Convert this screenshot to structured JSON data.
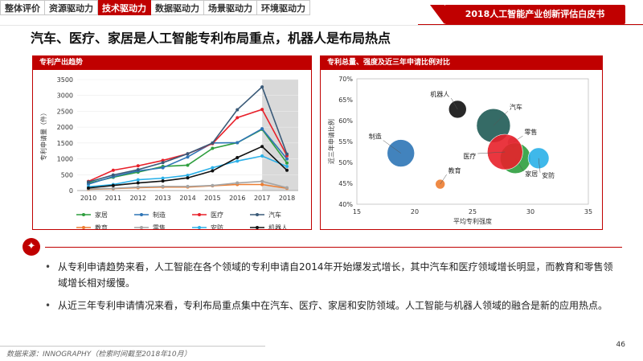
{
  "nav": {
    "tabs": [
      {
        "label": "整体评价",
        "active": false
      },
      {
        "label": "资源驱动力",
        "active": false
      },
      {
        "label": "技术驱动力",
        "active": true
      },
      {
        "label": "数据驱动力",
        "active": false
      },
      {
        "label": "场景驱动力",
        "active": false
      },
      {
        "label": "环境驱动力",
        "active": false
      }
    ]
  },
  "report_badge": "2018人工智能产业创新评估白皮书",
  "page_title": "汽车、医疗、家居是人工智能专利布局重点，机器人是布局热点",
  "left_panel": {
    "title": "专利产出趋势"
  },
  "right_panel": {
    "title": "专利总量、强度及近三年申请比例对比"
  },
  "chart_data": [
    {
      "type": "line",
      "title": "专利产出趋势",
      "xlabel": "",
      "ylabel": "专利申请量（件）",
      "x": [
        "2010",
        "2011",
        "2012",
        "2013",
        "2014",
        "2015",
        "2016",
        "2017",
        "2018"
      ],
      "ylim": [
        0,
        3500
      ],
      "yticks": [
        0,
        500,
        1000,
        1500,
        2000,
        2500,
        3000,
        3500
      ],
      "shaded_region": [
        "2017",
        "2018"
      ],
      "legend_position": "bottom",
      "series": [
        {
          "name": "家居",
          "color": "#2e9e3e",
          "values": [
            230,
            420,
            580,
            760,
            800,
            1330,
            1510,
            1930,
            870
          ]
        },
        {
          "name": "制造",
          "color": "#2e75b6",
          "values": [
            200,
            440,
            620,
            720,
            1060,
            1500,
            1510,
            1950,
            1000
          ]
        },
        {
          "name": "医疗",
          "color": "#e8202a",
          "values": [
            290,
            640,
            780,
            950,
            1160,
            1480,
            2300,
            2560,
            1100
          ]
        },
        {
          "name": "汽车",
          "color": "#3a5a78",
          "values": [
            270,
            490,
            660,
            880,
            1160,
            1500,
            2550,
            3270,
            1150
          ]
        },
        {
          "name": "教育",
          "color": "#ed7d31",
          "values": [
            40,
            60,
            90,
            110,
            110,
            150,
            190,
            190,
            70
          ]
        },
        {
          "name": "零售",
          "color": "#a5a5a5",
          "values": [
            50,
            70,
            110,
            130,
            130,
            160,
            240,
            290,
            90
          ]
        },
        {
          "name": "安防",
          "color": "#2ab0e8",
          "values": [
            120,
            190,
            340,
            390,
            480,
            720,
            930,
            1090,
            760
          ]
        },
        {
          "name": "机器人",
          "color": "#111111",
          "values": [
            80,
            160,
            240,
            300,
            400,
            620,
            1040,
            1390,
            640
          ]
        }
      ]
    },
    {
      "type": "scatter",
      "title": "专利总量、强度及近三年申请比例对比",
      "xlabel": "平均专利强度",
      "ylabel": "近三年申请比例",
      "xlim": [
        15,
        35
      ],
      "ylim": [
        40,
        70
      ],
      "xticks": [
        15,
        20,
        25,
        30,
        35
      ],
      "yticks": [
        "40%",
        "45%",
        "50%",
        "55%",
        "60%",
        "65%",
        "70%"
      ],
      "points": [
        {
          "label": "机器人",
          "x": 23.7,
          "y": 62.7,
          "r": 11,
          "color": "#111111"
        },
        {
          "label": "汽车",
          "x": 26.8,
          "y": 58.8,
          "r": 21,
          "color": "#1f5b55"
        },
        {
          "label": "制造",
          "x": 18.8,
          "y": 52.2,
          "r": 17,
          "color": "#2e75b6"
        },
        {
          "label": "零售",
          "x": 28.5,
          "y": 54.8,
          "r": 7,
          "color": "#a5a5a5"
        },
        {
          "label": "家居",
          "x": 28.7,
          "y": 51.0,
          "r": 19,
          "color": "#2e9e3e"
        },
        {
          "label": "医疗",
          "x": 27.8,
          "y": 52.5,
          "r": 22,
          "color": "#e8202a"
        },
        {
          "label": "安防",
          "x": 30.7,
          "y": 51.0,
          "r": 13,
          "color": "#2ab0e8"
        },
        {
          "label": "教育",
          "x": 22.2,
          "y": 44.8,
          "r": 6,
          "color": "#ed7d31"
        }
      ]
    }
  ],
  "bullets": [
    "从专利申请趋势来看，人工智能在各个领域的专利申请自2014年开始爆发式增长，其中汽车和医疗领域增长明显，而教育和零售领域增长相对缓慢。",
    "从近三年专利申请情况来看，专利布局重点集中在汽车、医疗、家居和安防领域。人工智能与机器人领域的融合是新的应用热点。"
  ],
  "footnote": "数据来源：INNOGRAPHY（检索时间截至2018年10月）",
  "page_number": "46"
}
